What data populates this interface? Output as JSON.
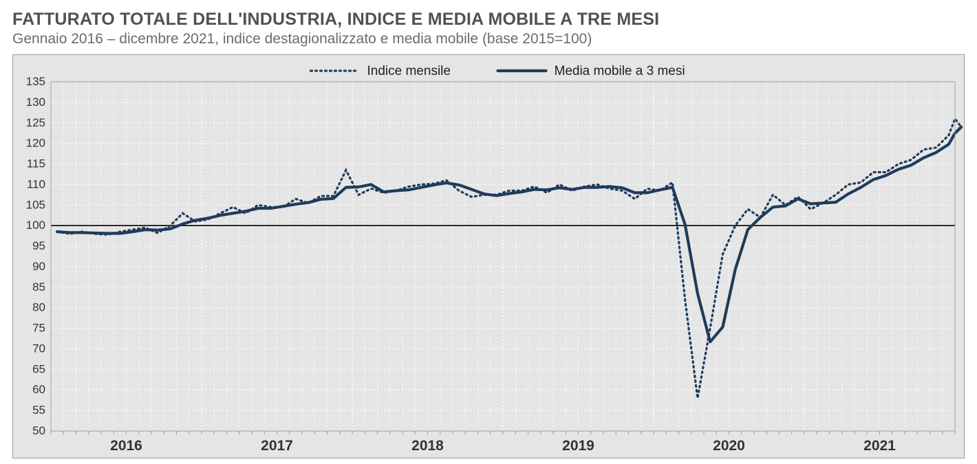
{
  "header": {
    "title": "FATTURATO TOTALE DELL'INDUSTRIA, INDICE E MEDIA MOBILE A TRE MESI",
    "subtitle": "Gennaio 2016 – dicembre 2021, indice destagionalizzato e media mobile (base 2015=100)"
  },
  "chart": {
    "type": "line",
    "background_color": "#e5e5e5",
    "plot_background": "#e5e5e5",
    "outer_border_color": "#9a9a9a",
    "grid_color": "#ffffff",
    "grid_dash": "2,3",
    "tick_font_color": "#333333",
    "tick_font_size": 17,
    "axis_font_size": 21,
    "axis_font_weight": "bold",
    "axis_font_color": "#333333",
    "baseline_color": "#000000",
    "baseline_value": 100,
    "ylim": [
      50,
      135
    ],
    "ytick_step": 5,
    "x_years": [
      2016,
      2017,
      2018,
      2019,
      2020,
      2021
    ],
    "x_monthly_minor_ticks": true,
    "legend": {
      "position": "top-center",
      "items": [
        {
          "label": "Indice mensile",
          "key": "monthly"
        },
        {
          "label": "Media mobile a 3 mesi",
          "key": "ma3"
        }
      ]
    },
    "series": {
      "monthly": {
        "color": "#1f3b5a",
        "stroke_width": 3.2,
        "dash": "2,5",
        "values": [
          98.5,
          98.0,
          98.5,
          98.0,
          97.8,
          98.5,
          99.0,
          99.5,
          98.2,
          100.0,
          103.0,
          101.0,
          101.5,
          103.0,
          104.5,
          103.0,
          105.0,
          104.5,
          104.5,
          106.5,
          105.5,
          107.2,
          107.2,
          113.5,
          107.5,
          109.0,
          108.0,
          108.5,
          109.5,
          110.0,
          110.2,
          111.0,
          108.5,
          107.0,
          107.5,
          107.5,
          108.5,
          108.5,
          109.5,
          108.0,
          110.0,
          108.5,
          109.5,
          110.0,
          109.0,
          108.5,
          106.5,
          109.0,
          108.5,
          110.5,
          82.0,
          58.0,
          75.0,
          93.0,
          100.0,
          104.0,
          102.0,
          107.5,
          105.0,
          107.0,
          104.0,
          105.5,
          107.5,
          110.0,
          110.5,
          113.0,
          113.0,
          115.0,
          116.0,
          118.5,
          119.0,
          122.0
        ]
      },
      "ma3": {
        "color": "#1f3b5a",
        "stroke_width": 4.2,
        "dash": null,
        "values": [
          98.5,
          98.3,
          98.3,
          98.2,
          98.1,
          98.1,
          98.5,
          99.0,
          98.9,
          99.2,
          100.4,
          101.3,
          101.8,
          102.5,
          103.0,
          103.5,
          104.2,
          104.2,
          104.7,
          105.2,
          105.6,
          106.4,
          106.6,
          109.3,
          109.4,
          110.0,
          108.2,
          108.5,
          108.7,
          109.3,
          109.9,
          110.4,
          109.9,
          108.8,
          107.7,
          107.3,
          107.8,
          108.2,
          108.8,
          108.7,
          109.2,
          108.8,
          109.3,
          109.3,
          109.5,
          109.2,
          108.0,
          108.0,
          108.7,
          109.3,
          100.3,
          83.5,
          71.7,
          75.3,
          89.3,
          99.0,
          102.0,
          104.5,
          104.8,
          106.5,
          105.3,
          105.5,
          105.7,
          107.7,
          109.3,
          111.2,
          112.2,
          113.7,
          114.7,
          116.5,
          117.8,
          119.8
        ]
      }
    },
    "last_two_monthly": [
      126.0,
      124.0
    ],
    "last_two_ma3": [
      122.5,
      124.0
    ]
  }
}
